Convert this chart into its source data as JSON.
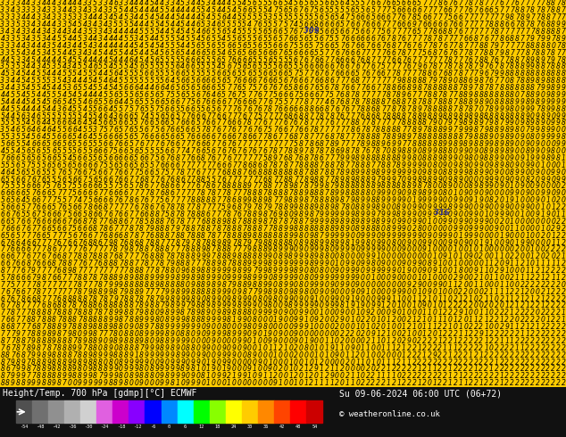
{
  "title_left": "Height/Temp. 700 hPa [gdmp][°C] ECMWF",
  "title_right": "Su 09-06-2024 06:00 UTC (06+72)",
  "copyright": "© weatheronline.co.uk",
  "colorbar_values": [
    -54,
    -48,
    -42,
    -36,
    -30,
    -24,
    -18,
    -12,
    -6,
    0,
    6,
    12,
    18,
    24,
    30,
    36,
    42,
    48,
    54
  ],
  "colorbar_colors": [
    "#505050",
    "#707070",
    "#909090",
    "#b0b0b0",
    "#d0d0d0",
    "#e060e0",
    "#cc00cc",
    "#8800ff",
    "#0000ff",
    "#0088ff",
    "#00ffff",
    "#00ff00",
    "#88ff00",
    "#ffff00",
    "#ffcc00",
    "#ff8800",
    "#ff4400",
    "#ff0000",
    "#cc0000"
  ],
  "bg_color": "#ffcc00",
  "main_bg": "#ffcc00",
  "legend_bg": "#111111",
  "text_color": "#ffffff",
  "rows": 55,
  "cols": 110,
  "digit_fontsize": 5.5,
  "digit_italic": true
}
